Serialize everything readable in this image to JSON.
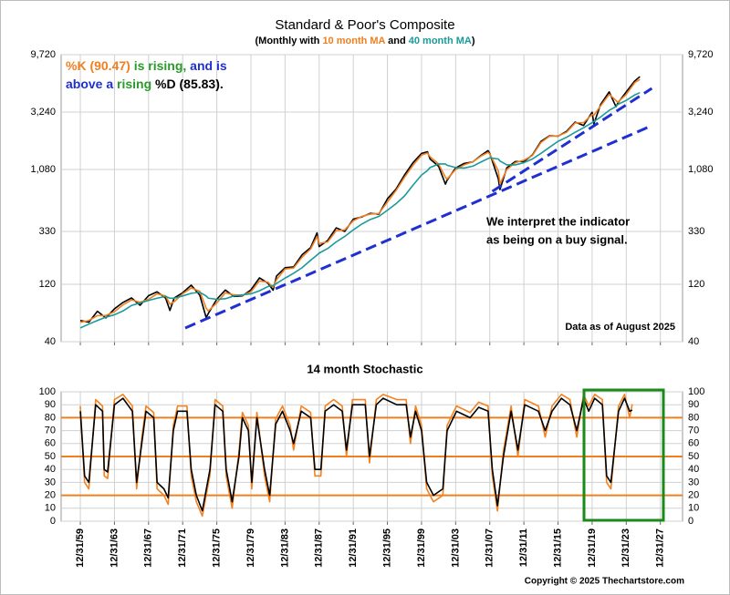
{
  "copyright": "Copyright © 2025 Thechartstore.com",
  "chart_data": [
    {
      "type": "line",
      "title": "Standard & Poor's Composite",
      "subtitle": [
        {
          "text": "(Monthly with ",
          "color": "#000000"
        },
        {
          "text": "10 month MA",
          "color": "#f07f20"
        },
        {
          "text": " and ",
          "color": "#000000"
        },
        {
          "text": "40 month MA",
          "color": "#1a9a9a"
        },
        {
          "text": ")",
          "color": "#000000"
        }
      ],
      "annotation": [
        [
          {
            "text": "%K (90.47)",
            "color": "#f07f20"
          },
          {
            "text": " is rising,",
            "color": "#2a9a2a"
          },
          {
            "text": " and is",
            "color": "#1f2fd0"
          }
        ],
        [
          {
            "text": "above a ",
            "color": "#1f2fd0"
          },
          {
            "text": "rising",
            "color": "#2a9a2a"
          },
          {
            "text": " %D (85.83).",
            "color": "#000000"
          }
        ]
      ],
      "note": [
        "We interpret the indicator",
        "as being on a buy signal."
      ],
      "note_color": "#1f2fd0",
      "footnote": "Data as of August 2025",
      "log_scale": true,
      "grid": true,
      "xlim": [
        1957.75,
        2030.6
      ],
      "ylim": [
        40,
        9720
      ],
      "yticks": [
        40,
        120,
        330,
        {
          "value": 1080,
          "label": "1,080"
        },
        {
          "value": 3240,
          "label": "3,240"
        },
        {
          "value": 9720,
          "label": "9,720"
        }
      ],
      "x": [
        1960,
        1961,
        1962,
        1963,
        1964,
        1965,
        1966,
        1967,
        1968,
        1969,
        1970,
        1970.5,
        1971,
        1972,
        1973,
        1974,
        1974.75,
        1975,
        1976,
        1977,
        1978,
        1979,
        1980,
        1981,
        1982,
        1982.6,
        1983,
        1984,
        1985,
        1986,
        1987,
        1987.75,
        1988,
        1989,
        1990,
        1991,
        1992,
        1993,
        1994,
        1995,
        1996,
        1997,
        1998,
        1999,
        2000,
        2000.7,
        2001,
        2002,
        2002.8,
        2003,
        2004,
        2005,
        2006,
        2007,
        2007.8,
        2008,
        2009,
        2009.2,
        2010,
        2011,
        2012,
        2013,
        2014,
        2015,
        2016,
        2017,
        2018,
        2019,
        2020,
        2020.2,
        2021,
        2022,
        2022.8,
        2023,
        2024,
        2025,
        2025.6
      ],
      "series": [
        {
          "color": "#000000",
          "values": [
            59.9,
            58.1,
            71.6,
            63.1,
            75,
            84.8,
            92.4,
            80.3,
            96.5,
            103.9,
            92.1,
            72.7,
            92.2,
            102.1,
            118,
            97.6,
            63.5,
            68.6,
            90.2,
            107.5,
            95.1,
            96.1,
            107.9,
            135.8,
            122.6,
            107.1,
            140.6,
            164.9,
            167.2,
            211.3,
            242.2,
            321,
            247.1,
            277.7,
            353.4,
            330.2,
            417.1,
            435.7,
            466.5,
            459.3,
            615.9,
            740.7,
            970.4,
            1229,
            1469,
            1517,
            1320,
            1148,
            815,
            880,
            1112,
            1212,
            1248,
            1418,
            1549,
            1468,
            903,
            735,
            1115,
            1258,
            1258,
            1426,
            1848,
            2059,
            2044,
            2239,
            2674,
            2507,
            3231,
            2585,
            3756,
            4766,
            3585,
            3840,
            4770,
            5882,
            6389
          ]
        },
        {
          "color": "#f07f20",
          "values": [
            58,
            60,
            66,
            66,
            71,
            81,
            89,
            85,
            90,
            100,
            96,
            82,
            86,
            100,
            112,
            105,
            76,
            72,
            84,
            102,
            98,
            97,
            104,
            128,
            125,
            113,
            131,
            161,
            164,
            202,
            236,
            300,
            262,
            270,
            335,
            340,
            405,
            440,
            460,
            465,
            580,
            720,
            930,
            1170,
            1420,
            1480,
            1380,
            1200,
            930,
            900,
            1080,
            1180,
            1250,
            1400,
            1500,
            1450,
            1050,
            820,
            1080,
            1230,
            1290,
            1410,
            1810,
            2040,
            2050,
            2200,
            2630,
            2650,
            3100,
            3050,
            3650,
            4550,
            4050,
            3900,
            4550,
            5700,
            6050
          ]
        },
        {
          "color": "#1a9a9a",
          "values": [
            52,
            56,
            60,
            64,
            67,
            72,
            80,
            84,
            88,
            92,
            95,
            92,
            92,
            96,
            101,
            103,
            96,
            92,
            90,
            91,
            96,
            98,
            100,
            106,
            115,
            117,
            122,
            135,
            148,
            165,
            190,
            210,
            218,
            238,
            270,
            300,
            340,
            380,
            415,
            440,
            495,
            560,
            650,
            800,
            970,
            1060,
            1120,
            1200,
            1200,
            1170,
            1120,
            1110,
            1150,
            1250,
            1330,
            1350,
            1320,
            1270,
            1180,
            1180,
            1230,
            1320,
            1470,
            1650,
            1850,
            2000,
            2200,
            2400,
            2650,
            2700,
            2950,
            3350,
            3600,
            3750,
            4050,
            4500,
            4700
          ]
        }
      ],
      "trendlines": [
        {
          "color": "#1f2fd0",
          "x": [
            1972.3,
            2027
          ],
          "y": [
            52,
            2500
          ]
        },
        {
          "color": "#1f2fd0",
          "x": [
            2008.3,
            2027
          ],
          "y": [
            711,
            5100
          ]
        }
      ]
    },
    {
      "type": "line",
      "title": "14 month Stochastic",
      "grid": true,
      "xlim": [
        1957.75,
        2030.6
      ],
      "ylim": [
        0,
        100
      ],
      "yticks": [
        0,
        10,
        20,
        30,
        40,
        50,
        60,
        70,
        80,
        90,
        100
      ],
      "xticks": [
        {
          "value": 1960,
          "label": "12/31/59"
        },
        {
          "value": 1964,
          "label": "12/31/63"
        },
        {
          "value": 1968,
          "label": "12/31/67"
        },
        {
          "value": 1972,
          "label": "12/31/71"
        },
        {
          "value": 1976,
          "label": "12/31/75"
        },
        {
          "value": 1980,
          "label": "12/31/79"
        },
        {
          "value": 1984,
          "label": "12/31/83"
        },
        {
          "value": 1988,
          "label": "12/31/87"
        },
        {
          "value": 1992,
          "label": "12/31/91"
        },
        {
          "value": 1996,
          "label": "12/31/95"
        },
        {
          "value": 2000,
          "label": "12/31/99"
        },
        {
          "value": 2004,
          "label": "12/31/03"
        },
        {
          "value": 2008,
          "label": "12/31/07"
        },
        {
          "value": 2012,
          "label": "12/31/11"
        },
        {
          "value": 2016,
          "label": "12/31/15"
        },
        {
          "value": 2020,
          "label": "12/31/19"
        },
        {
          "value": 2024,
          "label": "12/31/23"
        },
        {
          "value": 2028,
          "label": "12/31/27"
        }
      ],
      "hlines": [
        20,
        50,
        80
      ],
      "hline_color": "#f07f20",
      "x": [
        1960.0,
        1960.5,
        1961.0,
        1961.8,
        1962.6,
        1962.8,
        1963.2,
        1964.0,
        1965.0,
        1966.1,
        1966.6,
        1967.2,
        1967.7,
        1968.6,
        1969.0,
        1969.8,
        1970.3,
        1970.9,
        1971.4,
        1972.5,
        1973.0,
        1973.6,
        1974.3,
        1975.2,
        1975.8,
        1976.7,
        1977.1,
        1977.8,
        1978.6,
        1979.0,
        1979.7,
        1980.1,
        1980.7,
        1981.6,
        1982.2,
        1982.9,
        1983.7,
        1984.6,
        1985.0,
        1985.9,
        1987.0,
        1987.5,
        1988.2,
        1988.7,
        1989.7,
        1990.7,
        1991.2,
        1991.9,
        1993.4,
        1993.9,
        1994.7,
        1995.5,
        1997.1,
        1998.2,
        1998.7,
        1999.3,
        2000.0,
        2000.6,
        2001.4,
        2002.5,
        2003.0,
        2004.1,
        2005.7,
        2006.7,
        2007.8,
        2008.3,
        2008.9,
        2009.6,
        2010.5,
        2011.3,
        2012.1,
        2013.7,
        2014.5,
        2015.3,
        2016.4,
        2017.4,
        2018.2,
        2019.0,
        2019.6,
        2020.3,
        2021.2,
        2021.7,
        2022.2,
        2023.1,
        2023.8,
        2024.4,
        2024.7
      ],
      "series": [
        {
          "color": "#f5821f",
          "values": [
            89,
            30,
            25,
            94,
            89,
            35,
            33,
            94,
            98,
            89,
            25,
            64,
            89,
            84,
            25,
            20,
            13,
            74,
            89,
            89,
            35,
            15,
            4,
            36,
            94,
            89,
            35,
            10,
            54,
            84,
            74,
            25,
            84,
            35,
            15,
            79,
            89,
            74,
            55,
            89,
            84,
            35,
            35,
            89,
            94,
            89,
            50,
            94,
            94,
            45,
            94,
            98,
            94,
            94,
            60,
            89,
            74,
            25,
            15,
            20,
            74,
            89,
            84,
            92,
            89,
            35,
            8,
            54,
            89,
            50,
            94,
            89,
            65,
            89,
            98,
            94,
            65,
            98,
            89,
            98,
            94,
            30,
            25,
            89,
            98,
            80,
            90.47
          ]
        },
        {
          "color": "#000000",
          "values": [
            85,
            35,
            30,
            90,
            85,
            40,
            38,
            90,
            95,
            85,
            30,
            60,
            85,
            80,
            30,
            25,
            18,
            70,
            85,
            85,
            40,
            20,
            8,
            40,
            90,
            85,
            40,
            15,
            50,
            80,
            70,
            30,
            80,
            40,
            20,
            75,
            85,
            70,
            60,
            85,
            80,
            40,
            40,
            85,
            90,
            85,
            55,
            90,
            90,
            50,
            90,
            95,
            90,
            90,
            65,
            85,
            70,
            30,
            20,
            25,
            70,
            85,
            80,
            88,
            85,
            40,
            12,
            50,
            85,
            55,
            90,
            85,
            70,
            85,
            95,
            90,
            70,
            95,
            85,
            95,
            90,
            35,
            30,
            85,
            95,
            85,
            85.83
          ]
        }
      ]
    }
  ]
}
